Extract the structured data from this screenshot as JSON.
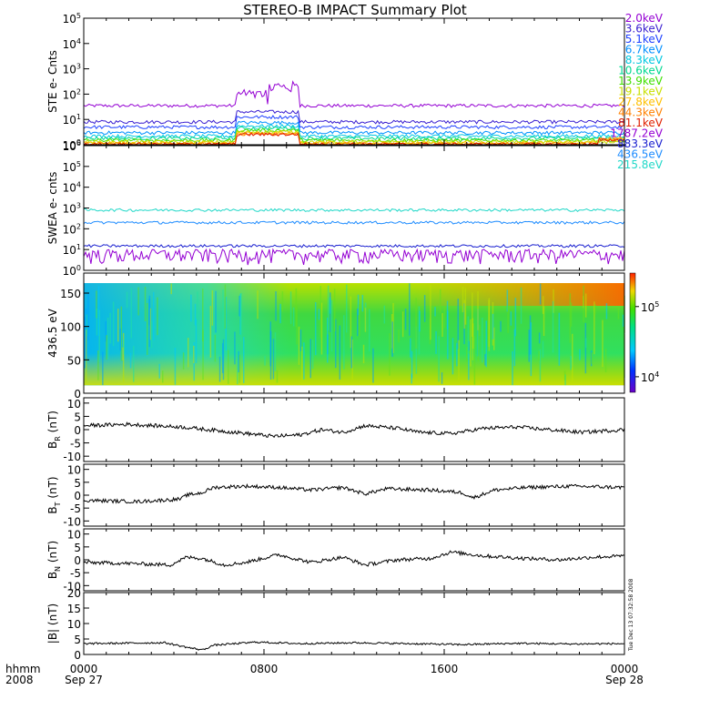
{
  "title": "STEREO-B IMPACT Summary Plot",
  "footer": {
    "time_label": "hhmm",
    "year_label": "2008",
    "x_ticks": [
      "0000",
      "0800",
      "1600",
      "0000"
    ],
    "start_date": "Sep 27",
    "end_date": "Sep 28"
  },
  "timestamp": "Tue Dec 13 07:32:58 2008",
  "chart_data": [
    {
      "type": "line",
      "ylabel": "STE e- Cnts",
      "yscale": "log",
      "ylim": [
        1,
        100000
      ],
      "y_ticks": [
        "10^0",
        "10^1",
        "10^2",
        "10^3",
        "10^4",
        "10^5"
      ],
      "x": [
        "0000",
        "0800",
        "1600",
        "0000"
      ],
      "series": [
        {
          "name": "2.0keV",
          "color": "#9400d3",
          "level": 35,
          "sep": [
            [
              0.28,
              0.34,
              100
            ],
            [
              0.34,
              0.4,
              200
            ]
          ]
        },
        {
          "name": "3.6keV",
          "color": "#3a1fd0",
          "level": 8
        },
        {
          "name": "5.1keV",
          "color": "#1e40ff",
          "level": 5
        },
        {
          "name": "6.7keV",
          "color": "#0090ff",
          "level": 3
        },
        {
          "name": "8.3keV",
          "color": "#00c8e0",
          "level": 2.2
        },
        {
          "name": "10.6keV",
          "color": "#00d890",
          "level": 1.8
        },
        {
          "name": "13.9keV",
          "color": "#40e000",
          "level": 1.5
        },
        {
          "name": "19.1keV",
          "color": "#c8e000",
          "level": 1.3
        },
        {
          "name": "27.8keV",
          "color": "#ffc000",
          "level": 1.15
        },
        {
          "name": "44.3keV",
          "color": "#ff8000",
          "level": 1.08
        },
        {
          "name": "81.1keV",
          "color": "#e02000",
          "level": 1.03
        }
      ]
    },
    {
      "type": "line",
      "ylabel": "SWEA e- cnts",
      "yscale": "log",
      "ylim": [
        1,
        1000000
      ],
      "y_ticks": [
        "10^0",
        "10^1",
        "10^2",
        "10^3",
        "10^4",
        "10^5",
        "10^6"
      ],
      "x": [
        "0000",
        "0800",
        "1600",
        "0000"
      ],
      "series": [
        {
          "name": "1787.2eV",
          "color": "#9400d3",
          "level": 6
        },
        {
          "name": "883.3eV",
          "color": "#1a20d0",
          "level": 15
        },
        {
          "name": "436.5eV",
          "color": "#1e8cff",
          "level": 200
        },
        {
          "name": "215.8eV",
          "color": "#20d8c8",
          "level": 800
        }
      ]
    },
    {
      "type": "heatmap",
      "ylabel": "436.5 eV",
      "ylim": [
        0,
        180
      ],
      "y_ticks": [
        "0",
        "50",
        "100",
        "150"
      ],
      "colorbar_ticks": [
        "10^4",
        "10^5"
      ],
      "colorbar_range": [
        6000,
        300000
      ]
    },
    {
      "type": "line",
      "ylabel": "B_R (nT)",
      "ylabel_main": "B",
      "ylabel_sub": "R",
      "ylabel_unit": "(nT)",
      "ylim": [
        -12,
        12
      ],
      "y_ticks": [
        "-10",
        "-5",
        "0",
        "5",
        "10"
      ],
      "series": [
        {
          "color": "#000000",
          "points": [
            [
              0,
              1.5
            ],
            [
              0.08,
              2
            ],
            [
              0.18,
              1
            ],
            [
              0.28,
              -1
            ],
            [
              0.35,
              -2.5
            ],
            [
              0.4,
              -2
            ],
            [
              0.44,
              0
            ],
            [
              0.48,
              -1
            ],
            [
              0.52,
              1.5
            ],
            [
              0.58,
              0.5
            ],
            [
              0.62,
              -1
            ],
            [
              0.68,
              -1.5
            ],
            [
              0.74,
              0.5
            ],
            [
              0.8,
              1
            ],
            [
              0.86,
              0
            ],
            [
              0.92,
              -1
            ],
            [
              0.96,
              -0.5
            ],
            [
              1.0,
              0
            ]
          ]
        }
      ]
    },
    {
      "type": "line",
      "ylabel": "B_T (nT)",
      "ylabel_main": "B",
      "ylabel_sub": "T",
      "ylabel_unit": "(nT)",
      "ylim": [
        -12,
        12
      ],
      "y_ticks": [
        "-10",
        "-5",
        "0",
        "5",
        "10"
      ],
      "series": [
        {
          "color": "#000000",
          "points": [
            [
              0,
              -2
            ],
            [
              0.1,
              -2.5
            ],
            [
              0.18,
              -1.5
            ],
            [
              0.19,
              0
            ],
            [
              0.22,
              1
            ],
            [
              0.24,
              3
            ],
            [
              0.3,
              3.5
            ],
            [
              0.36,
              3
            ],
            [
              0.42,
              2
            ],
            [
              0.48,
              3
            ],
            [
              0.52,
              0.5
            ],
            [
              0.56,
              2.5
            ],
            [
              0.64,
              2
            ],
            [
              0.7,
              1
            ],
            [
              0.72,
              -1
            ],
            [
              0.76,
              2
            ],
            [
              0.82,
              3
            ],
            [
              0.9,
              3.5
            ],
            [
              1.0,
              3
            ]
          ]
        }
      ]
    },
    {
      "type": "line",
      "ylabel": "B_N (nT)",
      "ylabel_main": "B",
      "ylabel_sub": "N",
      "ylabel_unit": "(nT)",
      "ylim": [
        -12,
        12
      ],
      "y_ticks": [
        "-10",
        "-5",
        "0",
        "5",
        "10"
      ],
      "series": [
        {
          "color": "#000000",
          "points": [
            [
              0,
              -1
            ],
            [
              0.1,
              -1.5
            ],
            [
              0.16,
              -2
            ],
            [
              0.19,
              1
            ],
            [
              0.22,
              0.5
            ],
            [
              0.26,
              -2
            ],
            [
              0.3,
              -1
            ],
            [
              0.36,
              2
            ],
            [
              0.42,
              -1
            ],
            [
              0.48,
              1
            ],
            [
              0.52,
              -2
            ],
            [
              0.58,
              0
            ],
            [
              0.64,
              0.5
            ],
            [
              0.68,
              3
            ],
            [
              0.74,
              1.5
            ],
            [
              0.82,
              0.5
            ],
            [
              0.88,
              0
            ],
            [
              0.94,
              1
            ],
            [
              1.0,
              1.5
            ]
          ]
        }
      ]
    },
    {
      "type": "line",
      "ylabel": "|B| (nT)",
      "ylabel_main": "|B|",
      "ylabel_sub": "",
      "ylabel_unit": "(nT)",
      "ylim": [
        0,
        20
      ],
      "y_ticks": [
        "0",
        "5",
        "10",
        "15",
        "20"
      ],
      "series": [
        {
          "color": "#000000",
          "points": [
            [
              0,
              3.5
            ],
            [
              0.15,
              3.8
            ],
            [
              0.2,
              2
            ],
            [
              0.22,
              1.5
            ],
            [
              0.24,
              3
            ],
            [
              0.32,
              4
            ],
            [
              0.4,
              3.5
            ],
            [
              0.5,
              3.8
            ],
            [
              0.6,
              3.5
            ],
            [
              0.7,
              3.2
            ],
            [
              0.8,
              3.6
            ],
            [
              0.9,
              3.4
            ],
            [
              1.0,
              3.5
            ]
          ]
        }
      ]
    }
  ]
}
